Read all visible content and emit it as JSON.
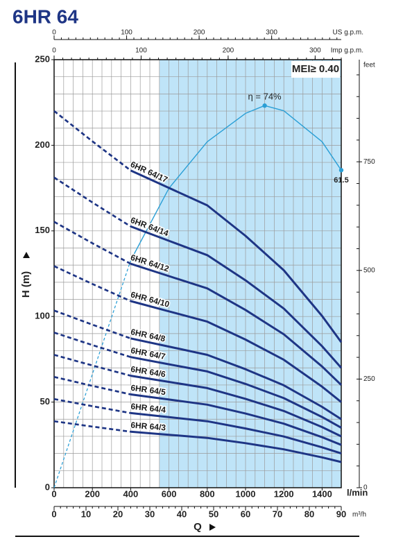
{
  "chart_data": {
    "type": "line",
    "title": "6HR 64",
    "badge": "MEI≥ 0.40",
    "x_label": "l/min",
    "x_axis_title": "Q",
    "y_label": "H (m)",
    "y2_label": "feet",
    "x": [
      0,
      200,
      400,
      600,
      800,
      1000,
      1200,
      1400,
      1500
    ],
    "xlim": [
      0,
      1500
    ],
    "xticks": [
      0,
      200,
      400,
      600,
      800,
      1000,
      1200,
      1400
    ],
    "ylim": [
      0,
      250
    ],
    "yticks": [
      0,
      50,
      100,
      150,
      200,
      250
    ],
    "y2lim": [
      0,
      985
    ],
    "y2ticks": [
      0,
      250,
      500,
      750
    ],
    "y2_minor_step": 50,
    "grid": true,
    "grid_x_step": 50,
    "grid_y_step": 10,
    "highlight_x": [
      550,
      1500
    ],
    "highlight_color": "#bfe4f8",
    "dashed_until_x": 400,
    "x_axes": [
      {
        "label": "US g.p.m.",
        "lim": [
          0,
          396
        ],
        "ticks": [
          0,
          100,
          200,
          300
        ],
        "minor_step": 10
      },
      {
        "label": "Imp g.p.m.",
        "lim": [
          0,
          330
        ],
        "ticks": [
          0,
          100,
          200,
          300
        ],
        "minor_step": 10
      },
      {
        "label": "m³/h",
        "lim": [
          0,
          90
        ],
        "ticks": [
          0,
          10,
          20,
          30,
          40,
          50,
          60,
          70,
          80,
          90
        ],
        "minor_step": 2
      }
    ],
    "curve_color": "#1e3585",
    "series": [
      {
        "name": "6HR 64/17",
        "values": [
          220,
          202.3,
          185.3,
          175.1,
          164.9,
          147.1,
          127.0,
          100.3,
          85
        ]
      },
      {
        "name": "6HR 64/14",
        "values": [
          181.2,
          166.6,
          152.6,
          144.2,
          135.8,
          121.1,
          104.6,
          82.6,
          70
        ]
      },
      {
        "name": "6HR 64/12",
        "values": [
          155.3,
          142.8,
          130.8,
          123.6,
          116.4,
          103.8,
          89.6,
          70.8,
          60
        ]
      },
      {
        "name": "6HR 64/10",
        "values": [
          129.4,
          119,
          109,
          103,
          97,
          86.5,
          74.7,
          59,
          50
        ]
      },
      {
        "name": "6HR 64/8",
        "values": [
          103.5,
          95.2,
          87.2,
          82.4,
          77.6,
          69.2,
          59.8,
          47.2,
          40
        ]
      },
      {
        "name": "6HR 64/7",
        "values": [
          90.6,
          83.3,
          76.3,
          72.1,
          67.9,
          60.6,
          52.3,
          41.3,
          35
        ]
      },
      {
        "name": "6HR 64/6",
        "values": [
          77.6,
          71.4,
          65.4,
          61.8,
          58.2,
          51.9,
          44.8,
          35.4,
          30
        ]
      },
      {
        "name": "6HR 64/5",
        "values": [
          64.7,
          59.5,
          54.5,
          51.5,
          48.5,
          43.3,
          37.4,
          29.5,
          25
        ]
      },
      {
        "name": "6HR 64/4",
        "values": [
          51.8,
          47.6,
          43.6,
          41.2,
          38.8,
          34.6,
          29.9,
          23.6,
          20
        ]
      },
      {
        "name": "6HR 64/3",
        "values": [
          38.8,
          35.7,
          32.7,
          30.9,
          29.1,
          26,
          22.4,
          17.7,
          15
        ]
      }
    ],
    "efficiency": {
      "color": "#2a9fd6",
      "ylim": [
        0,
        82.9
      ],
      "x": [
        0,
        200,
        400,
        600,
        800,
        1000,
        1100,
        1200,
        1400,
        1500
      ],
      "values": [
        0,
        22,
        44,
        58,
        67,
        72.5,
        74,
        73,
        67,
        61.5
      ],
      "value_labels": [
        null,
        null,
        null,
        null,
        null,
        null,
        "η = 74%",
        null,
        null,
        "61.5"
      ]
    }
  }
}
